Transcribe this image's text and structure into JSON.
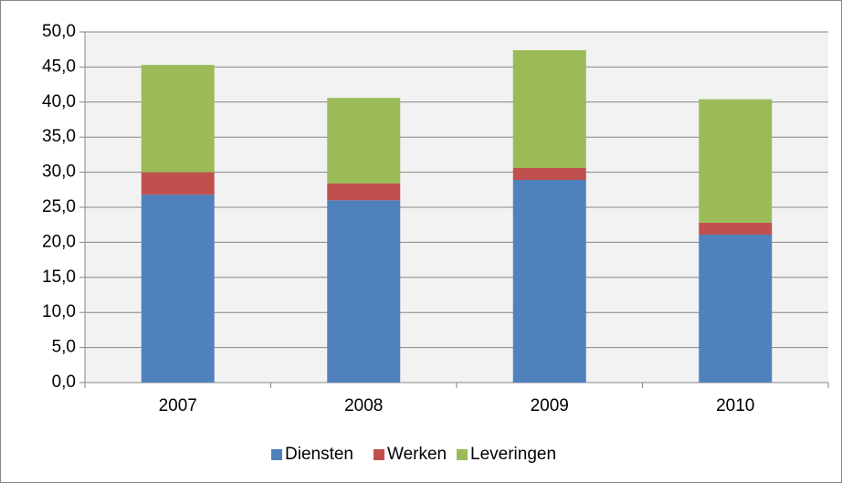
{
  "chart_data": {
    "type": "stacked_bar",
    "categories": [
      "2007",
      "2008",
      "2009",
      "2010"
    ],
    "series": [
      {
        "name": "Diensten",
        "color": "#4f81bd",
        "values": [
          26.8,
          26.0,
          28.9,
          21.1
        ]
      },
      {
        "name": "Werken",
        "color": "#c0504d",
        "values": [
          3.2,
          2.4,
          1.7,
          1.7
        ]
      },
      {
        "name": "Leveringen",
        "color": "#9bbb59",
        "values": [
          15.3,
          12.2,
          16.8,
          17.6
        ]
      }
    ],
    "ylim": [
      0,
      50
    ],
    "yticks": [
      {
        "value": 0,
        "label": "0,0"
      },
      {
        "value": 5,
        "label": "5,0"
      },
      {
        "value": 10,
        "label": "10,0"
      },
      {
        "value": 15,
        "label": "15,0"
      },
      {
        "value": 20,
        "label": "20,0"
      },
      {
        "value": 25,
        "label": "25,0"
      },
      {
        "value": 30,
        "label": "30,0"
      },
      {
        "value": 35,
        "label": "35,0"
      },
      {
        "value": 40,
        "label": "40,0"
      },
      {
        "value": 45,
        "label": "45,0"
      },
      {
        "value": 50,
        "label": "50,0"
      }
    ],
    "grid": true,
    "legend": "bottom"
  }
}
